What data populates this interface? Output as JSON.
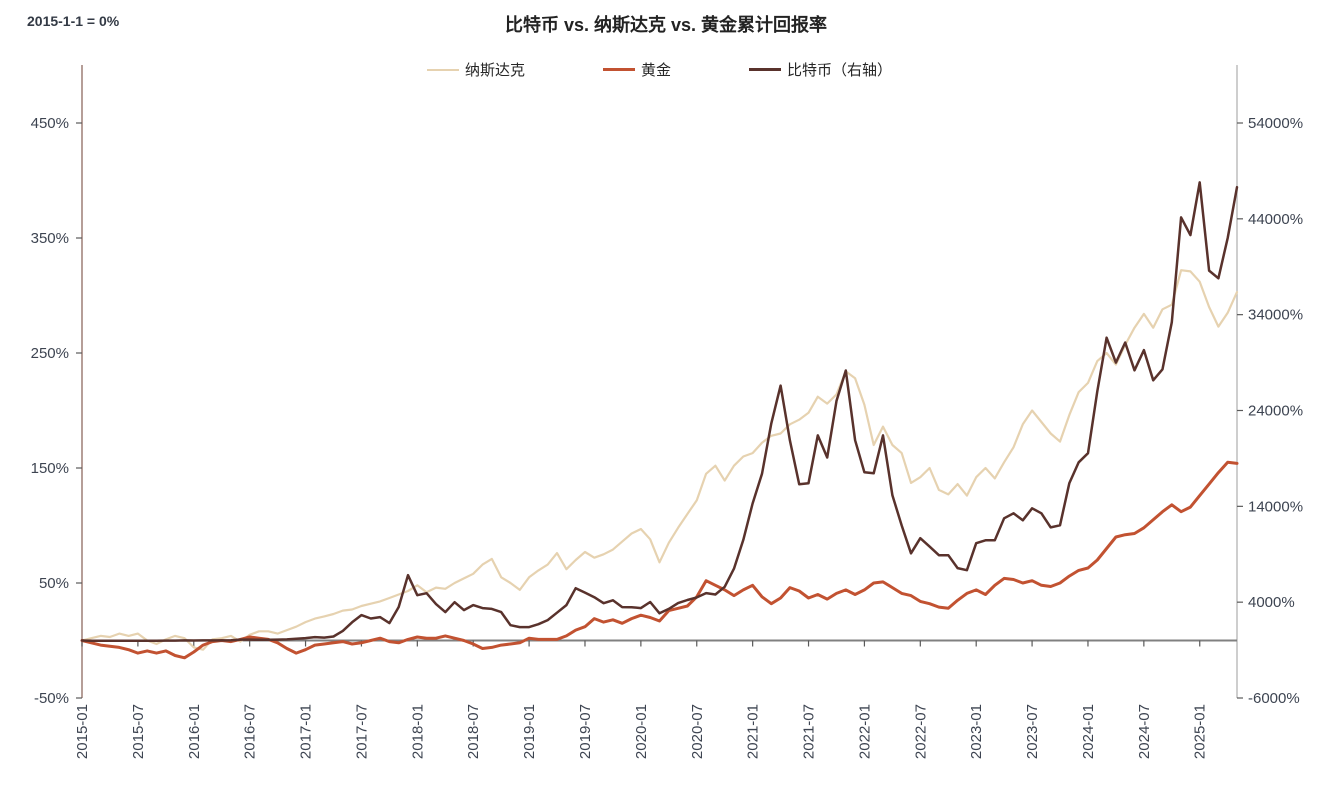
{
  "note": "2015-1-1 = 0%",
  "title": "比特币 vs. 纳斯达克 vs. 黄金累计回报率",
  "chart_data": {
    "type": "line",
    "title": "比特币 vs. 纳斯达克 vs. 黄金累计回报率",
    "baseline_note": "2015-1-1 = 0%",
    "x_start": "2015-01",
    "x_end": "2025-05",
    "x_interval": "monthly",
    "x_tick_labels": [
      "2015-01",
      "2015-07",
      "2016-01",
      "2016-07",
      "2017-01",
      "2017-07",
      "2018-01",
      "2018-07",
      "2019-01",
      "2019-07",
      "2020-01",
      "2020-07",
      "2021-01",
      "2021-07",
      "2022-01",
      "2022-07",
      "2023-01",
      "2023-07",
      "2024-01",
      "2024-07",
      "2025-01"
    ],
    "left_axis": {
      "unit": "%",
      "ticks": [
        450,
        350,
        250,
        150,
        50,
        -50
      ],
      "range": [
        -100,
        500
      ]
    },
    "right_axis": {
      "unit": "%",
      "ticks": [
        54000,
        44000,
        34000,
        24000,
        14000,
        4000,
        -6000
      ],
      "range": [
        -12000,
        60000
      ]
    },
    "legend_position": "top",
    "grid": false,
    "series": [
      {
        "name": "纳斯达克",
        "axis": "left",
        "color": "#e6d2b0",
        "width": 2.2,
        "values": [
          0,
          2,
          4,
          3,
          6,
          4,
          6,
          0,
          -3,
          1,
          4,
          2,
          -6,
          -8,
          1,
          2,
          4,
          -1,
          5,
          8,
          8,
          6,
          9,
          12,
          16,
          19,
          21,
          23,
          26,
          27,
          30,
          32,
          34,
          37,
          40,
          43,
          48,
          42,
          46,
          45,
          50,
          54,
          58,
          66,
          71,
          55,
          50,
          44,
          55,
          61,
          66,
          76,
          62,
          70,
          77,
          72,
          75,
          79,
          86,
          93,
          97,
          88,
          68,
          85,
          98,
          110,
          122,
          145,
          152,
          139,
          152,
          160,
          163,
          172,
          178,
          180,
          188,
          192,
          198,
          212,
          206,
          214,
          234,
          228,
          205,
          170,
          186,
          170,
          163,
          137,
          142,
          150,
          131,
          127,
          136,
          126,
          142,
          150,
          141,
          155,
          168,
          188,
          200,
          190,
          180,
          173,
          196,
          216,
          224,
          243,
          250,
          240,
          257,
          272,
          284,
          272,
          288,
          292,
          322,
          321,
          312,
          290,
          273,
          285,
          303
        ]
      },
      {
        "name": "黄金",
        "axis": "left",
        "color": "#c25231",
        "width": 3,
        "values": [
          0,
          -2,
          -4,
          -5,
          -6,
          -8,
          -11,
          -9,
          -11,
          -9,
          -13,
          -15,
          -10,
          -4,
          -1,
          0,
          -1,
          1,
          3,
          2,
          1,
          -2,
          -7,
          -11,
          -8,
          -4,
          -3,
          -2,
          -1,
          -3,
          -2,
          0,
          2,
          -1,
          -2,
          1,
          3,
          2,
          2,
          4,
          2,
          0,
          -3,
          -7,
          -6,
          -4,
          -3,
          -2,
          2,
          1,
          1,
          1,
          4,
          9,
          12,
          19,
          16,
          18,
          15,
          19,
          22,
          20,
          17,
          26,
          28,
          30,
          38,
          52,
          48,
          44,
          39,
          44,
          48,
          38,
          32,
          37,
          46,
          43,
          37,
          40,
          36,
          41,
          44,
          40,
          44,
          50,
          51,
          46,
          41,
          39,
          34,
          32,
          29,
          28,
          35,
          41,
          44,
          40,
          48,
          54,
          53,
          50,
          52,
          48,
          47,
          50,
          56,
          61,
          63,
          70,
          80,
          90,
          92,
          93,
          98,
          105,
          112,
          118,
          112,
          116,
          126,
          136,
          146,
          155,
          154
        ]
      },
      {
        "name": "比特币（右轴）",
        "axis": "right",
        "color": "#59322c",
        "width": 2.5,
        "values": [
          0,
          -20,
          -25,
          -22,
          -24,
          -21,
          -18,
          -20,
          -26,
          -15,
          -8,
          10,
          5,
          8,
          12,
          15,
          18,
          95,
          90,
          75,
          85,
          95,
          120,
          190,
          250,
          350,
          300,
          420,
          1000,
          1900,
          2650,
          2300,
          2440,
          1815,
          3500,
          6815,
          4730,
          4940,
          3800,
          2960,
          4000,
          3170,
          3690,
          3380,
          3300,
          2960,
          1600,
          1400,
          1400,
          1700,
          2130,
          2900,
          3690,
          5460,
          5000,
          4520,
          3890,
          4200,
          3480,
          3470,
          3380,
          4020,
          2840,
          3300,
          3900,
          4230,
          4500,
          4950,
          4800,
          5600,
          7500,
          10500,
          14300,
          17400,
          22650,
          26600,
          20880,
          16300,
          16400,
          21400,
          19100,
          25000,
          28170,
          20900,
          17550,
          17450,
          21400,
          15150,
          12000,
          9100,
          10670,
          9800,
          8900,
          8900,
          7550,
          7340,
          10150,
          10460,
          10460,
          12750,
          13270,
          12540,
          13800,
          13270,
          11800,
          12020,
          16400,
          18600,
          19540,
          26000,
          31600,
          29000,
          31100,
          28200,
          30300,
          27150,
          28300,
          33200,
          44150,
          42300,
          47800,
          38600,
          37800,
          42000,
          47300
        ]
      }
    ],
    "style": {
      "left_axis_line_color": "#96756c",
      "right_axis_line_color": "#b9b9b9",
      "zero_line_color": "#808080",
      "tick_color": "#595959",
      "tick_label_color": "#3d4451"
    }
  }
}
